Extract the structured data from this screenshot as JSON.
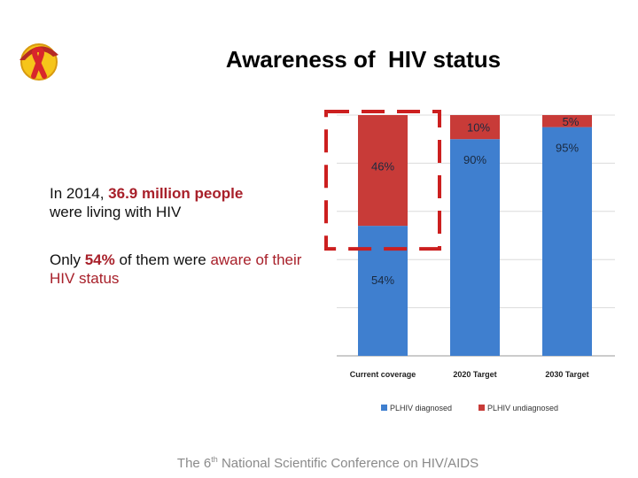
{
  "slide": {
    "title": "Awareness of  HIV status",
    "para1": {
      "pre": "In 2014, ",
      "highlight": "36.9 million people",
      "post": "were living with HIV"
    },
    "para2": {
      "pre": "Only ",
      "highlight": "54%",
      "post": " of them were ",
      "highlight2": "aware of their HIV status"
    },
    "footer": {
      "pre": "The 6",
      "sup": "th",
      "post": " National Scientific Conference on HIV/AIDS"
    },
    "logo_icon": "red-ribbon-conical-hat-logo"
  },
  "colors": {
    "diagnosed": "#3f7fcf",
    "undiagnosed": "#c83b38",
    "highlight_text": "#a8202a",
    "dashed_box": "#cc1f1f"
  },
  "chart_data": {
    "type": "bar",
    "stacked": true,
    "percent_stacked": true,
    "categories": [
      "Current coverage",
      "2020 Target",
      "2030 Target"
    ],
    "series": [
      {
        "name": "PLHIV diagnosed",
        "values": [
          54,
          90,
          95
        ],
        "labels": [
          "54%",
          "90%",
          "95%"
        ]
      },
      {
        "name": "PLHIV undiagnosed",
        "values": [
          46,
          10,
          5
        ],
        "labels": [
          "46%",
          "10%",
          "5%"
        ]
      }
    ],
    "ylim": [
      0,
      100
    ],
    "grid": true,
    "legend": "bottom",
    "highlight": "dashed box around Current coverage undiagnosed segment"
  }
}
